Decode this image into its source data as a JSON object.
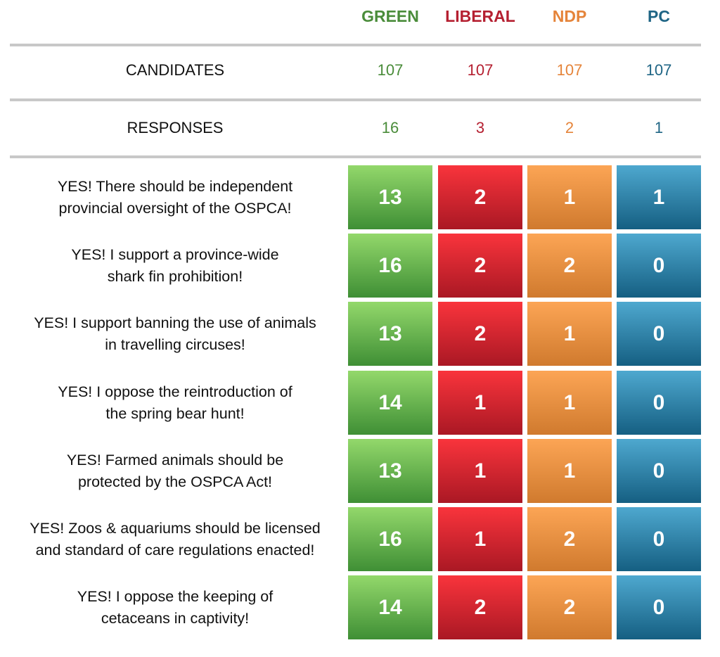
{
  "chart_data": {
    "type": "table",
    "parties": [
      "GREEN",
      "LIBERAL",
      "NDP",
      "PC"
    ],
    "party_colors": [
      "#4a8c3a",
      "#b52031",
      "#e5843a",
      "#1f6585"
    ],
    "summary": [
      {
        "label": "CANDIDATES",
        "values": [
          107,
          107,
          107,
          107
        ]
      },
      {
        "label": "RESPONSES",
        "values": [
          16,
          3,
          2,
          1
        ]
      }
    ],
    "questions": [
      {
        "lines": [
          "YES! There should be independent",
          "provincial oversight of the OSPCA!"
        ],
        "values": [
          13,
          2,
          1,
          1
        ]
      },
      {
        "lines": [
          "YES! I support a province-wide",
          "shark fin prohibition!"
        ],
        "values": [
          16,
          2,
          2,
          0
        ]
      },
      {
        "lines": [
          "YES! I support banning the use of animals",
          "in travelling circuses!"
        ],
        "values": [
          13,
          2,
          1,
          0
        ]
      },
      {
        "lines": [
          "YES! I oppose the reintroduction of",
          "the spring bear hunt!"
        ],
        "values": [
          14,
          1,
          1,
          0
        ]
      },
      {
        "lines": [
          "YES! Farmed animals should be",
          "protected by the OSPCA Act!"
        ],
        "values": [
          13,
          1,
          1,
          0
        ]
      },
      {
        "lines": [
          "YES! Zoos & aquariums should be licensed",
          "and standard of care regulations enacted!"
        ],
        "values": [
          16,
          1,
          2,
          0
        ]
      },
      {
        "lines": [
          "YES! I oppose the keeping of",
          "cetaceans in captivity!"
        ],
        "values": [
          14,
          2,
          2,
          0
        ]
      }
    ]
  }
}
